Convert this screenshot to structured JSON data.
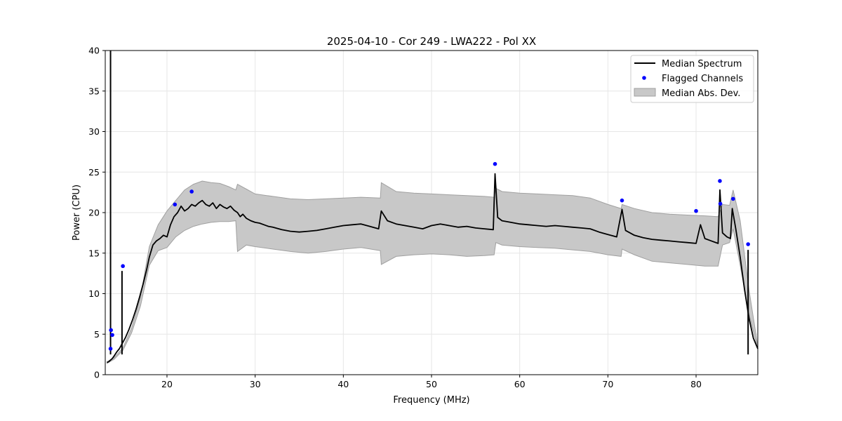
{
  "chart_data": {
    "type": "line",
    "title": "2025-04-10 - Cor 249 - LWA222 - Pol XX",
    "xlabel": "Frequency (MHz)",
    "ylabel": "Power (CPU)",
    "xlim": [
      13,
      87
    ],
    "ylim": [
      0,
      40
    ],
    "x_ticks": [
      "20",
      "30",
      "40",
      "50",
      "60",
      "70",
      "80"
    ],
    "y_ticks": [
      "0",
      "5",
      "10",
      "15",
      "20",
      "25",
      "30",
      "35",
      "40"
    ],
    "grid": true,
    "legend_position": "top-right",
    "legend": [
      "Median Spectrum",
      "Flagged Channels",
      "Median Abs. Dev."
    ],
    "colors": {
      "median": "#000000",
      "flagged": "#0000ff",
      "mad_fill": "#c8c8c8",
      "mad_edge": "#a0a0a0"
    },
    "series": [
      {
        "name": "Median Spectrum",
        "kind": "line",
        "x": [
          13.2,
          13.4,
          13.6,
          13.8,
          14.0,
          14.3,
          14.6,
          14.9,
          15.3,
          15.7,
          16.1,
          16.5,
          16.9,
          17.3,
          17.7,
          18.0,
          18.4,
          18.8,
          19.2,
          19.6,
          20.0,
          20.4,
          20.8,
          21.2,
          21.6,
          22.0,
          22.4,
          22.8,
          23.2,
          23.6,
          24.0,
          24.4,
          24.8,
          25.2,
          25.6,
          26.0,
          26.4,
          26.8,
          27.2,
          27.6,
          28.0,
          28.3,
          28.6,
          29.0,
          29.5,
          30.0,
          30.5,
          31.0,
          31.5,
          32.0,
          33.0,
          34.0,
          35.0,
          36.0,
          37.0,
          38.0,
          39.0,
          40.0,
          41.0,
          42.0,
          43.0,
          44.0,
          44.3,
          45.0,
          46.0,
          47.0,
          48.0,
          49.0,
          50.0,
          51.0,
          52.0,
          53.0,
          54.0,
          55.0,
          56.0,
          57.0,
          57.2,
          57.5,
          58.0,
          59.0,
          60.0,
          61.0,
          62.0,
          63.0,
          64.0,
          65.0,
          66.0,
          67.0,
          68.0,
          69.0,
          70.0,
          71.0,
          71.6,
          72.0,
          73.0,
          74.0,
          75.0,
          76.0,
          77.0,
          78.0,
          79.0,
          80.0,
          80.5,
          81.0,
          81.5,
          82.0,
          82.5,
          82.7,
          83.0,
          83.5,
          83.9,
          84.1,
          84.5,
          85.0,
          85.5,
          86.0,
          86.5,
          87.0
        ],
        "y": [
          1.5,
          1.6,
          1.8,
          2.0,
          2.3,
          2.8,
          3.2,
          3.8,
          4.6,
          5.6,
          6.8,
          8.1,
          9.6,
          11.2,
          13.0,
          14.5,
          16.0,
          16.5,
          16.8,
          17.2,
          17.0,
          18.5,
          19.5,
          20.0,
          20.8,
          20.2,
          20.5,
          21.0,
          20.8,
          21.2,
          21.5,
          21.0,
          20.8,
          21.2,
          20.5,
          21.0,
          20.7,
          20.5,
          20.8,
          20.3,
          20.0,
          19.5,
          19.8,
          19.3,
          19.0,
          18.8,
          18.7,
          18.5,
          18.3,
          18.2,
          17.9,
          17.7,
          17.6,
          17.7,
          17.8,
          18.0,
          18.2,
          18.4,
          18.5,
          18.6,
          18.3,
          18.0,
          20.2,
          19.0,
          18.6,
          18.4,
          18.2,
          18.0,
          18.4,
          18.6,
          18.4,
          18.2,
          18.3,
          18.1,
          18.0,
          17.9,
          24.8,
          19.4,
          19.0,
          18.8,
          18.6,
          18.5,
          18.4,
          18.3,
          18.4,
          18.3,
          18.2,
          18.1,
          18.0,
          17.6,
          17.3,
          17.0,
          20.4,
          17.8,
          17.2,
          16.9,
          16.7,
          16.6,
          16.5,
          16.4,
          16.3,
          16.2,
          18.5,
          16.8,
          16.6,
          16.4,
          16.2,
          22.8,
          17.5,
          17.0,
          16.8,
          20.5,
          18.0,
          14.5,
          10.5,
          7.0,
          4.5,
          3.2
        ],
        "spikes": [
          {
            "x": 13.6,
            "y": 40.0
          },
          {
            "x": 14.9,
            "y": 12.8
          },
          {
            "x": 85.9,
            "y": 15.4
          }
        ]
      },
      {
        "name": "Flagged Channels",
        "kind": "scatter",
        "x": [
          13.6,
          13.65,
          13.8,
          15.0,
          20.9,
          22.8,
          57.2,
          71.6,
          80.0,
          82.7,
          82.75,
          84.2,
          85.9
        ],
        "y": [
          3.2,
          5.5,
          4.9,
          13.4,
          21.0,
          22.6,
          26.0,
          21.5,
          20.2,
          23.9,
          21.1,
          21.7,
          16.1
        ]
      },
      {
        "name": "Median Abs. Dev.",
        "kind": "band",
        "x": [
          13.2,
          14.0,
          15.0,
          16.0,
          17.0,
          18.0,
          19.0,
          20.0,
          21.0,
          22.0,
          23.0,
          24.0,
          25.0,
          26.0,
          27.0,
          27.8,
          28.0,
          29.0,
          30.0,
          32.0,
          34.0,
          36.0,
          38.0,
          40.0,
          42.0,
          44.2,
          44.3,
          46.0,
          48.0,
          50.0,
          52.0,
          54.0,
          56.0,
          57.1,
          57.3,
          58.0,
          60.0,
          62.0,
          64.0,
          66.0,
          68.0,
          70.0,
          71.5,
          71.6,
          73.0,
          75.0,
          77.0,
          79.0,
          81.0,
          82.5,
          83.0,
          83.8,
          84.2,
          85.0,
          86.0,
          87.0
        ],
        "lower": [
          1.4,
          1.9,
          3.0,
          5.2,
          8.5,
          13.5,
          15.3,
          15.7,
          17.0,
          17.8,
          18.3,
          18.6,
          18.8,
          18.9,
          18.9,
          19.0,
          15.2,
          16.0,
          15.8,
          15.5,
          15.2,
          15.0,
          15.2,
          15.5,
          15.7,
          15.3,
          13.6,
          14.6,
          14.8,
          14.9,
          14.8,
          14.6,
          14.7,
          14.8,
          16.3,
          16.0,
          15.8,
          15.7,
          15.6,
          15.4,
          15.2,
          14.8,
          14.6,
          15.5,
          14.8,
          14.0,
          13.8,
          13.6,
          13.4,
          13.4,
          16.0,
          16.3,
          18.0,
          13.5,
          7.5,
          3.2
        ],
        "upper": [
          1.6,
          2.1,
          3.3,
          5.8,
          9.6,
          15.8,
          18.5,
          20.2,
          21.5,
          22.8,
          23.5,
          23.9,
          23.7,
          23.6,
          23.2,
          22.8,
          23.5,
          22.9,
          22.3,
          22.0,
          21.7,
          21.6,
          21.7,
          21.8,
          21.9,
          21.8,
          23.7,
          22.6,
          22.4,
          22.3,
          22.2,
          22.1,
          22.0,
          21.9,
          23.0,
          22.6,
          22.4,
          22.3,
          22.2,
          22.1,
          21.8,
          21.0,
          20.5,
          21.0,
          20.5,
          20.0,
          19.8,
          19.7,
          19.6,
          19.5,
          21.0,
          20.9,
          22.8,
          19.0,
          10.5,
          3.5
        ]
      }
    ]
  }
}
